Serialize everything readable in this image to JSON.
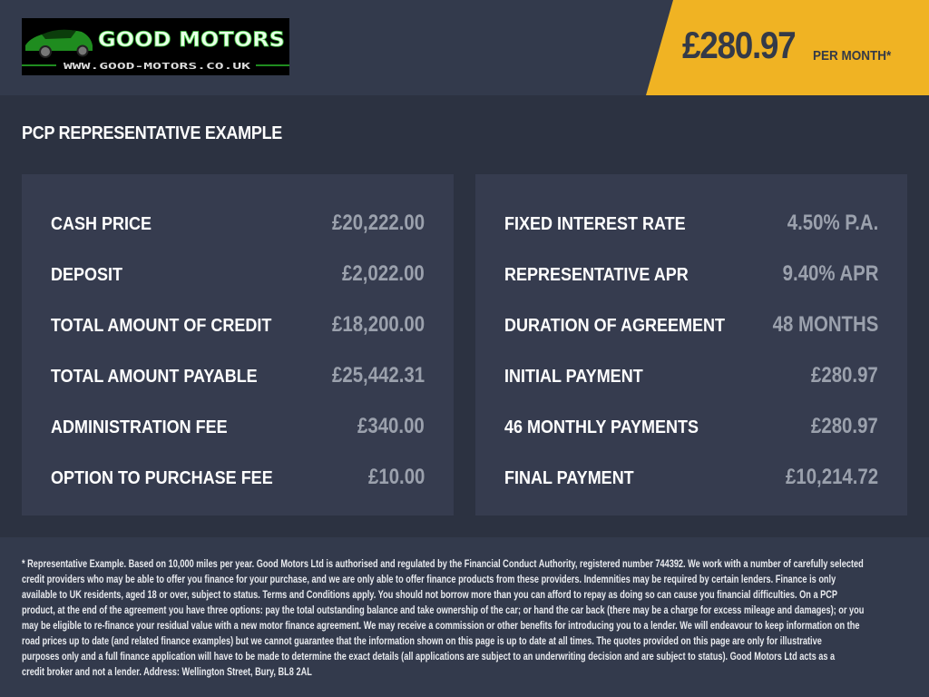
{
  "header": {
    "logo": {
      "brand": "GOOD MOTORS",
      "url": "WWW.GOOD-MOTORS.CO.UK"
    },
    "monthly_price": "£280.97",
    "per_month_label": "PER MONTH*",
    "accent_color": "#f0b323"
  },
  "title": "PCP REPRESENTATIVE EXAMPLE",
  "left_card": [
    {
      "label": "CASH PRICE",
      "value": "£20,222.00"
    },
    {
      "label": "DEPOSIT",
      "value": "£2,022.00"
    },
    {
      "label": "TOTAL AMOUNT OF CREDIT",
      "value": "£18,200.00"
    },
    {
      "label": "TOTAL AMOUNT PAYABLE",
      "value": "£25,442.31"
    },
    {
      "label": "ADMINISTRATION FEE",
      "value": "£340.00"
    },
    {
      "label": "OPTION TO PURCHASE FEE",
      "value": "£10.00"
    }
  ],
  "right_card": [
    {
      "label": "FIXED INTEREST RATE",
      "value": "4.50% P.A."
    },
    {
      "label": "REPRESENTATIVE APR",
      "value": "9.40% APR"
    },
    {
      "label": "DURATION OF AGREEMENT",
      "value": "48 MONTHS"
    },
    {
      "label": "INITIAL PAYMENT",
      "value": "£280.97"
    },
    {
      "label": "46 MONTHLY PAYMENTS",
      "value": "£280.97"
    },
    {
      "label": "FINAL PAYMENT",
      "value": "£10,214.72"
    }
  ],
  "disclaimer_lines": [
    "* Representative Example. Based on 10,000 miles per year. Good Motors Ltd is authorised and regulated by the Financial Conduct Authority, registered number 744392. We work with a number of carefully selected",
    "credit providers who may be able to offer you finance for your purchase, and we are only able to offer finance products from these providers. Indemnities may be required by certain lenders. Finance is only",
    "available to UK residents, aged 18 or over, subject to status. Terms and Conditions apply. You should not borrow more than you can afford to repay as doing so can cause you financial difficulties. On a PCP",
    "product, at the end of the agreement you have three options: pay the total outstanding balance and take ownership of the car; or hand the car back (there may be a charge for excess mileage and damages); or you",
    "may be eligible to re-finance your residual value with a new motor finance agreement. We may receive a commission or other benefits for introducing you to a lender. We will endeavour to keep information on the",
    "road prices up to date (and related finance examples) but we cannot guarantee that the information shown on this page is up to date at all times. The quotes provided on this page are only for illustrative",
    "purposes only and a full finance application will have to be made to determine the exact details (all applications are subject to an underwriting decision and are subject to status). Good Motors Ltd acts as a",
    "credit broker and not a lender. Address: Wellington Street, Bury, BL8 2AL"
  ]
}
